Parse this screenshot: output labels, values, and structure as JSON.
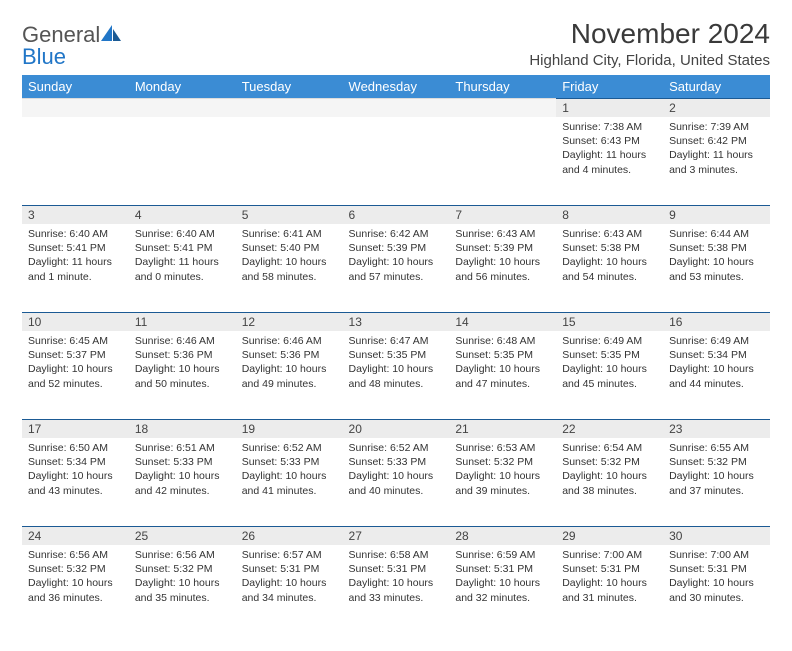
{
  "logo": {
    "word1": "General",
    "word2": "Blue"
  },
  "title": "November 2024",
  "location": "Highland City, Florida, United States",
  "colors": {
    "header_bg": "#3b8cd4",
    "header_text": "#ffffff",
    "daynum_bg": "#ececec",
    "rule": "#1b5a94",
    "logo_blue": "#2176c7",
    "text": "#333333",
    "page_bg": "#ffffff"
  },
  "day_headers": [
    "Sunday",
    "Monday",
    "Tuesday",
    "Wednesday",
    "Thursday",
    "Friday",
    "Saturday"
  ],
  "weeks": [
    [
      {
        "n": "",
        "sunrise": "",
        "sunset": "",
        "daylight": ""
      },
      {
        "n": "",
        "sunrise": "",
        "sunset": "",
        "daylight": ""
      },
      {
        "n": "",
        "sunrise": "",
        "sunset": "",
        "daylight": ""
      },
      {
        "n": "",
        "sunrise": "",
        "sunset": "",
        "daylight": ""
      },
      {
        "n": "",
        "sunrise": "",
        "sunset": "",
        "daylight": ""
      },
      {
        "n": "1",
        "sunrise": "Sunrise: 7:38 AM",
        "sunset": "Sunset: 6:43 PM",
        "daylight": "Daylight: 11 hours and 4 minutes."
      },
      {
        "n": "2",
        "sunrise": "Sunrise: 7:39 AM",
        "sunset": "Sunset: 6:42 PM",
        "daylight": "Daylight: 11 hours and 3 minutes."
      }
    ],
    [
      {
        "n": "3",
        "sunrise": "Sunrise: 6:40 AM",
        "sunset": "Sunset: 5:41 PM",
        "daylight": "Daylight: 11 hours and 1 minute."
      },
      {
        "n": "4",
        "sunrise": "Sunrise: 6:40 AM",
        "sunset": "Sunset: 5:41 PM",
        "daylight": "Daylight: 11 hours and 0 minutes."
      },
      {
        "n": "5",
        "sunrise": "Sunrise: 6:41 AM",
        "sunset": "Sunset: 5:40 PM",
        "daylight": "Daylight: 10 hours and 58 minutes."
      },
      {
        "n": "6",
        "sunrise": "Sunrise: 6:42 AM",
        "sunset": "Sunset: 5:39 PM",
        "daylight": "Daylight: 10 hours and 57 minutes."
      },
      {
        "n": "7",
        "sunrise": "Sunrise: 6:43 AM",
        "sunset": "Sunset: 5:39 PM",
        "daylight": "Daylight: 10 hours and 56 minutes."
      },
      {
        "n": "8",
        "sunrise": "Sunrise: 6:43 AM",
        "sunset": "Sunset: 5:38 PM",
        "daylight": "Daylight: 10 hours and 54 minutes."
      },
      {
        "n": "9",
        "sunrise": "Sunrise: 6:44 AM",
        "sunset": "Sunset: 5:38 PM",
        "daylight": "Daylight: 10 hours and 53 minutes."
      }
    ],
    [
      {
        "n": "10",
        "sunrise": "Sunrise: 6:45 AM",
        "sunset": "Sunset: 5:37 PM",
        "daylight": "Daylight: 10 hours and 52 minutes."
      },
      {
        "n": "11",
        "sunrise": "Sunrise: 6:46 AM",
        "sunset": "Sunset: 5:36 PM",
        "daylight": "Daylight: 10 hours and 50 minutes."
      },
      {
        "n": "12",
        "sunrise": "Sunrise: 6:46 AM",
        "sunset": "Sunset: 5:36 PM",
        "daylight": "Daylight: 10 hours and 49 minutes."
      },
      {
        "n": "13",
        "sunrise": "Sunrise: 6:47 AM",
        "sunset": "Sunset: 5:35 PM",
        "daylight": "Daylight: 10 hours and 48 minutes."
      },
      {
        "n": "14",
        "sunrise": "Sunrise: 6:48 AM",
        "sunset": "Sunset: 5:35 PM",
        "daylight": "Daylight: 10 hours and 47 minutes."
      },
      {
        "n": "15",
        "sunrise": "Sunrise: 6:49 AM",
        "sunset": "Sunset: 5:35 PM",
        "daylight": "Daylight: 10 hours and 45 minutes."
      },
      {
        "n": "16",
        "sunrise": "Sunrise: 6:49 AM",
        "sunset": "Sunset: 5:34 PM",
        "daylight": "Daylight: 10 hours and 44 minutes."
      }
    ],
    [
      {
        "n": "17",
        "sunrise": "Sunrise: 6:50 AM",
        "sunset": "Sunset: 5:34 PM",
        "daylight": "Daylight: 10 hours and 43 minutes."
      },
      {
        "n": "18",
        "sunrise": "Sunrise: 6:51 AM",
        "sunset": "Sunset: 5:33 PM",
        "daylight": "Daylight: 10 hours and 42 minutes."
      },
      {
        "n": "19",
        "sunrise": "Sunrise: 6:52 AM",
        "sunset": "Sunset: 5:33 PM",
        "daylight": "Daylight: 10 hours and 41 minutes."
      },
      {
        "n": "20",
        "sunrise": "Sunrise: 6:52 AM",
        "sunset": "Sunset: 5:33 PM",
        "daylight": "Daylight: 10 hours and 40 minutes."
      },
      {
        "n": "21",
        "sunrise": "Sunrise: 6:53 AM",
        "sunset": "Sunset: 5:32 PM",
        "daylight": "Daylight: 10 hours and 39 minutes."
      },
      {
        "n": "22",
        "sunrise": "Sunrise: 6:54 AM",
        "sunset": "Sunset: 5:32 PM",
        "daylight": "Daylight: 10 hours and 38 minutes."
      },
      {
        "n": "23",
        "sunrise": "Sunrise: 6:55 AM",
        "sunset": "Sunset: 5:32 PM",
        "daylight": "Daylight: 10 hours and 37 minutes."
      }
    ],
    [
      {
        "n": "24",
        "sunrise": "Sunrise: 6:56 AM",
        "sunset": "Sunset: 5:32 PM",
        "daylight": "Daylight: 10 hours and 36 minutes."
      },
      {
        "n": "25",
        "sunrise": "Sunrise: 6:56 AM",
        "sunset": "Sunset: 5:32 PM",
        "daylight": "Daylight: 10 hours and 35 minutes."
      },
      {
        "n": "26",
        "sunrise": "Sunrise: 6:57 AM",
        "sunset": "Sunset: 5:31 PM",
        "daylight": "Daylight: 10 hours and 34 minutes."
      },
      {
        "n": "27",
        "sunrise": "Sunrise: 6:58 AM",
        "sunset": "Sunset: 5:31 PM",
        "daylight": "Daylight: 10 hours and 33 minutes."
      },
      {
        "n": "28",
        "sunrise": "Sunrise: 6:59 AM",
        "sunset": "Sunset: 5:31 PM",
        "daylight": "Daylight: 10 hours and 32 minutes."
      },
      {
        "n": "29",
        "sunrise": "Sunrise: 7:00 AM",
        "sunset": "Sunset: 5:31 PM",
        "daylight": "Daylight: 10 hours and 31 minutes."
      },
      {
        "n": "30",
        "sunrise": "Sunrise: 7:00 AM",
        "sunset": "Sunset: 5:31 PM",
        "daylight": "Daylight: 10 hours and 30 minutes."
      }
    ]
  ]
}
